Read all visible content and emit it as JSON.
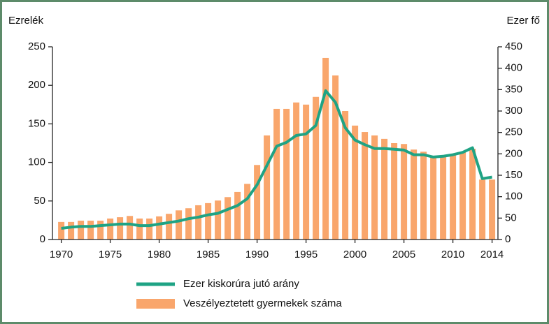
{
  "chart_data": {
    "type": "bar-line",
    "y_label": "Ezrelék",
    "y2_label": "Ezer fő",
    "x": [
      1970,
      1971,
      1972,
      1973,
      1974,
      1975,
      1976,
      1977,
      1978,
      1979,
      1980,
      1981,
      1982,
      1983,
      1984,
      1985,
      1986,
      1987,
      1988,
      1989,
      1990,
      1991,
      1992,
      1993,
      1994,
      1995,
      1996,
      1997,
      1998,
      1999,
      2000,
      2001,
      2002,
      2003,
      2004,
      2005,
      2006,
      2007,
      2008,
      2009,
      2010,
      2011,
      2012,
      2013,
      2014
    ],
    "xlim": [
      1969.1,
      2014.6
    ],
    "xticks": [
      1970,
      1975,
      1980,
      1985,
      1990,
      1995,
      2000,
      2005,
      2010,
      2014
    ],
    "ylim": [
      0,
      250
    ],
    "yticks": [
      0,
      50,
      100,
      150,
      200,
      250
    ],
    "y2lim": [
      0,
      450
    ],
    "y2ticks": [
      0,
      50,
      100,
      150,
      200,
      250,
      300,
      350,
      400,
      450
    ],
    "series": [
      {
        "name": "Ezer kiskorúra jutó arány",
        "type": "line",
        "axis": "y",
        "color": "#1fa384",
        "values": [
          14.5,
          16,
          17,
          17,
          18,
          19,
          20,
          20,
          18,
          18,
          20,
          22,
          24,
          27,
          29,
          32,
          34,
          39,
          44,
          53,
          71,
          96,
          121,
          126,
          135,
          137,
          148,
          193,
          178,
          145,
          129,
          123,
          118,
          118,
          117,
          116,
          110,
          110,
          107,
          108,
          110,
          113,
          119,
          79,
          81
        ]
      },
      {
        "name": "Veszélyeztetett gyermekek száma",
        "type": "bar",
        "axis": "y2",
        "color": "#f9a66c",
        "values": [
          41,
          41,
          44,
          44,
          44,
          49,
          52,
          55,
          49,
          49,
          54,
          60,
          68,
          73,
          80,
          85,
          91,
          99,
          111,
          130,
          174,
          243,
          305,
          305,
          320,
          315,
          333,
          424,
          383,
          300,
          266,
          251,
          243,
          235,
          225,
          223,
          210,
          205,
          194,
          196,
          200,
          204,
          212,
          140,
          140
        ]
      }
    ]
  }
}
